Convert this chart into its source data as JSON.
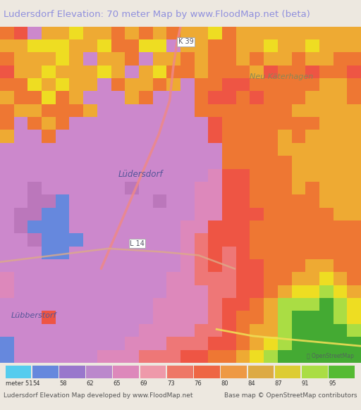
{
  "title": "Ludersdorf Elevation: 70 meter Map by www.FloodMap.net (beta)",
  "title_color": "#9090dd",
  "bg_color": "#ede8e0",
  "legend_labels": [
    "meter 51",
    "54",
    "58",
    "62",
    "65",
    "69",
    "73",
    "76",
    "80",
    "84",
    "87",
    "91",
    "95"
  ],
  "legend_colors": [
    "#55ccee",
    "#6688dd",
    "#9977cc",
    "#bb88cc",
    "#dd88bb",
    "#ee99aa",
    "#ee7766",
    "#ee6644",
    "#ee9944",
    "#ddaa44",
    "#ddcc33",
    "#aadd44",
    "#55bb33"
  ],
  "footer_left": "Ludersdorf Elevation Map developed by www.FloodMap.net",
  "footer_right": "Base map © OpenStreetMap contributors"
}
